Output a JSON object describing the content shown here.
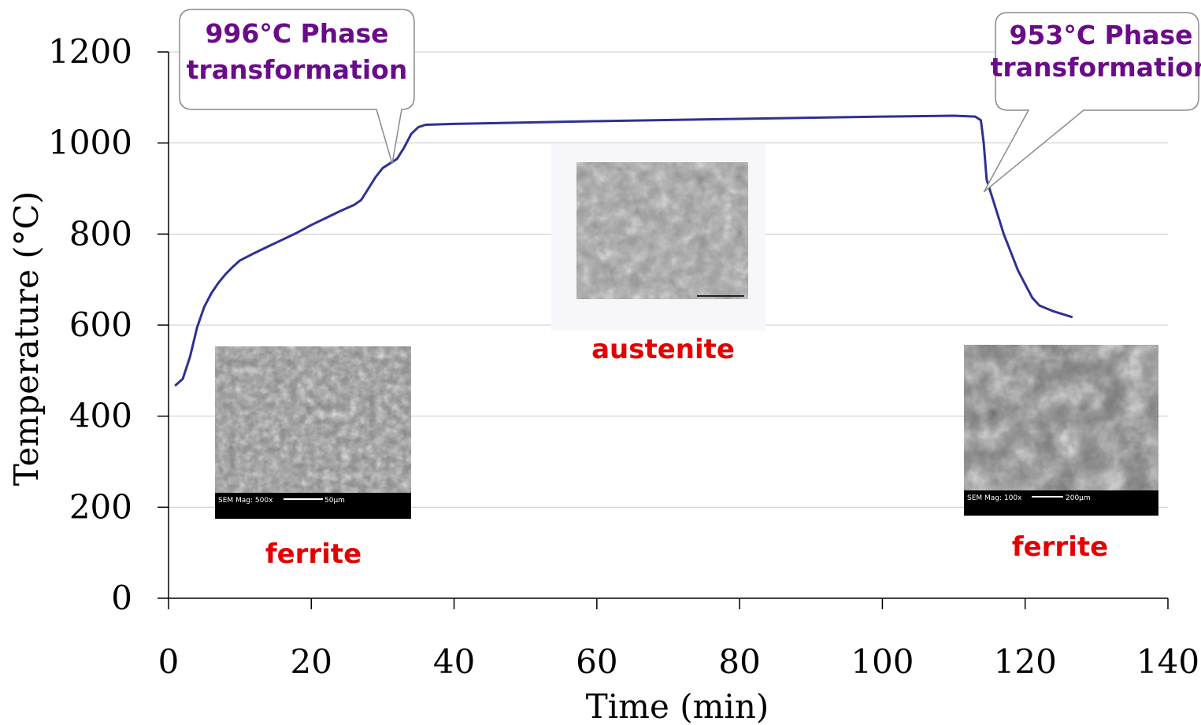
{
  "chart_data": {
    "type": "line",
    "xlabel": "Time (min)",
    "ylabel": "Temperature (°C)",
    "xlim": [
      0,
      140
    ],
    "ylim": [
      0,
      1200
    ],
    "xticks": [
      "0",
      "20",
      "40",
      "60",
      "80",
      "100",
      "120",
      "140"
    ],
    "yticks": [
      "0",
      "200",
      "400",
      "600",
      "800",
      "1000",
      "1200"
    ],
    "grid": "horizontal",
    "series": [
      {
        "color": "#2e3192",
        "points": [
          [
            1,
            468
          ],
          [
            2,
            482
          ],
          [
            3,
            530
          ],
          [
            4,
            595
          ],
          [
            5,
            640
          ],
          [
            6,
            670
          ],
          [
            7,
            693
          ],
          [
            8,
            712
          ],
          [
            9,
            728
          ],
          [
            10,
            742
          ],
          [
            12,
            758
          ],
          [
            14,
            773
          ],
          [
            16,
            788
          ],
          [
            18,
            803
          ],
          [
            20,
            820
          ],
          [
            22,
            835
          ],
          [
            24,
            850
          ],
          [
            26,
            864
          ],
          [
            27,
            875
          ],
          [
            28,
            900
          ],
          [
            29,
            925
          ],
          [
            30,
            945
          ],
          [
            31,
            955
          ],
          [
            32,
            965
          ],
          [
            33,
            990
          ],
          [
            34,
            1020
          ],
          [
            35,
            1035
          ],
          [
            36,
            1040
          ],
          [
            40,
            1042
          ],
          [
            60,
            1048
          ],
          [
            80,
            1053
          ],
          [
            100,
            1058
          ],
          [
            110,
            1060
          ],
          [
            113,
            1058
          ],
          [
            113.8,
            1050
          ],
          [
            114.2,
            1000
          ],
          [
            114.6,
            920
          ],
          [
            115,
            900
          ],
          [
            116,
            850
          ],
          [
            117,
            800
          ],
          [
            118,
            760
          ],
          [
            119,
            720
          ],
          [
            120,
            690
          ],
          [
            121,
            660
          ],
          [
            122,
            643
          ],
          [
            124,
            630
          ],
          [
            126.5,
            618
          ]
        ]
      }
    ],
    "annotations": [
      {
        "line1": "996°C Phase",
        "line2": "transformation",
        "target_x": 31,
        "target_y": 965
      },
      {
        "line1": "953°C Phase",
        "line2": "transformation",
        "target_x": 115,
        "target_y": 910
      }
    ],
    "phase_labels": [
      "ferrite",
      "austenite",
      "ferrite"
    ],
    "micrographs": [
      {
        "caption": "SEM Mag: 500x",
        "scale": "50µm"
      },
      {
        "caption": "",
        "scale": ""
      },
      {
        "caption": "SEM Mag: 100x",
        "scale": "200µm"
      }
    ]
  },
  "colors": {
    "line": "#2e3192",
    "callout_text": "#6a0c8a",
    "phase_text": "#e50000",
    "grid": "#c8c8c8"
  }
}
